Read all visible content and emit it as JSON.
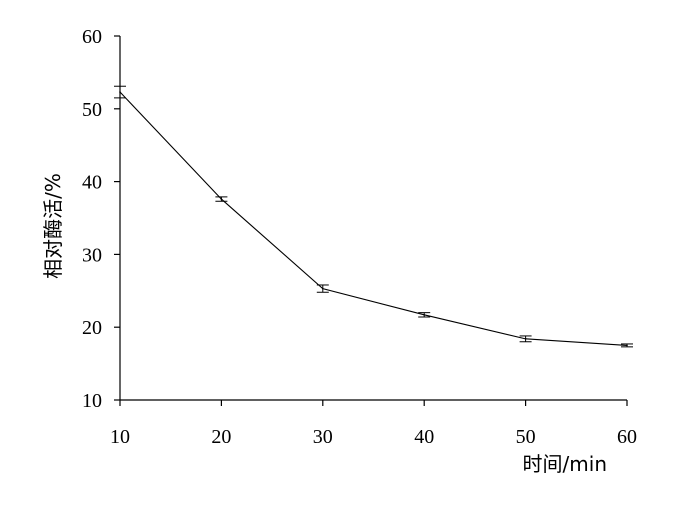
{
  "chart_data": {
    "type": "line",
    "title": "",
    "xlabel": "时间/min",
    "ylabel": "相对酶活/%",
    "xlim": [
      10,
      60
    ],
    "ylim": [
      10,
      60
    ],
    "xticks": [
      10,
      20,
      30,
      40,
      50,
      60
    ],
    "yticks": [
      10,
      20,
      30,
      40,
      50,
      60
    ],
    "grid": false,
    "series": [
      {
        "x": [
          10,
          20,
          30,
          40,
          50,
          60
        ],
        "y": [
          52.3,
          37.6,
          25.3,
          21.7,
          18.4,
          17.5
        ],
        "error": [
          0.8,
          0.3,
          0.5,
          0.3,
          0.4,
          0.2
        ],
        "color": "#000000"
      }
    ]
  }
}
